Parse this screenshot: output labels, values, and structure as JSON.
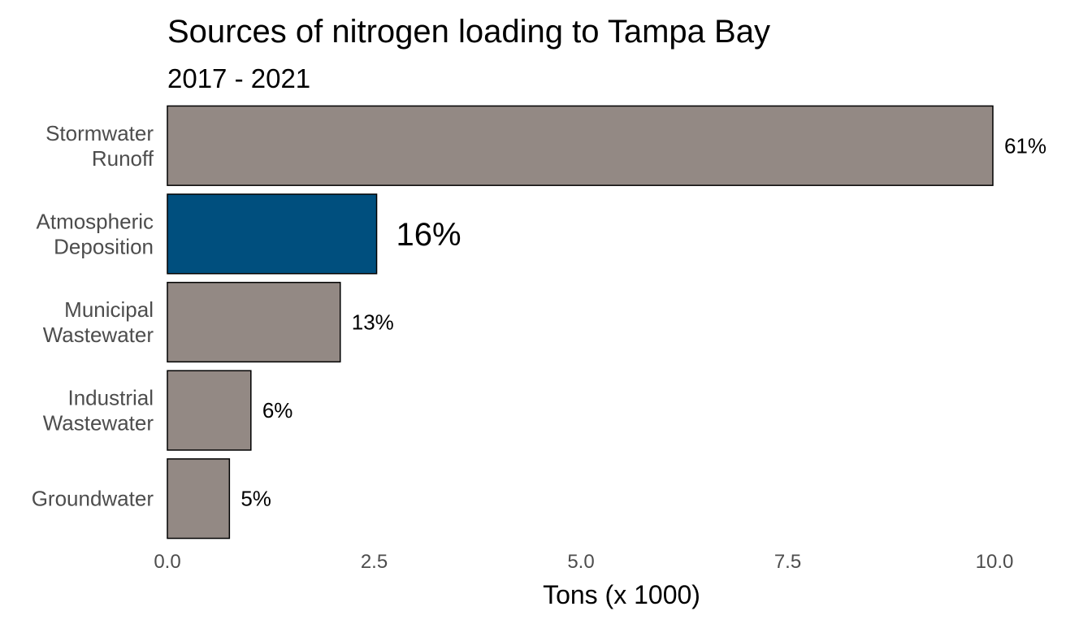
{
  "chart_data": {
    "type": "bar",
    "orientation": "horizontal",
    "title": "Sources of nitrogen loading to Tampa Bay",
    "subtitle": "2017 - 2021",
    "xlabel": "Tons (x 1000)",
    "ylabel": "",
    "xlim": [
      0,
      10.0
    ],
    "xticks": [
      "0.0",
      "2.5",
      "5.0",
      "7.5",
      "10.0"
    ],
    "grid": false,
    "categories": [
      [
        "Stormwater",
        "Runoff"
      ],
      [
        "Atmospheric",
        "Deposition"
      ],
      [
        "Municipal",
        "Wastewater"
      ],
      [
        "Industrial",
        "Wastewater"
      ],
      [
        "Groundwater"
      ]
    ],
    "values": [
      9.98,
      2.53,
      2.09,
      1.01,
      0.75
    ],
    "labels": [
      "61%",
      "16%",
      "13%",
      "6%",
      "5%"
    ],
    "highlight_index": 1,
    "colors": {
      "bar": "#938984",
      "highlight": "#004f7e",
      "outline": "#000000"
    }
  }
}
